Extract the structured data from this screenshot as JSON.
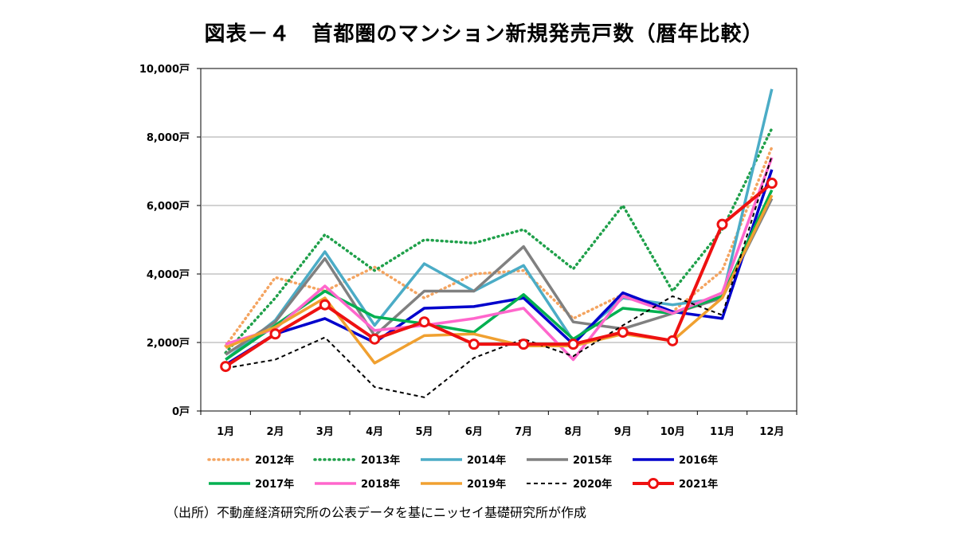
{
  "chart_data": {
    "type": "line",
    "title": "図表－４　首都圏のマンション新規発売戸数（暦年比較）",
    "xlabel": "",
    "ylabel": "",
    "categories": [
      "1月",
      "2月",
      "3月",
      "4月",
      "5月",
      "6月",
      "7月",
      "8月",
      "9月",
      "10月",
      "11月",
      "12月"
    ],
    "ylim": [
      0,
      10000
    ],
    "yticks": [
      0,
      2000,
      4000,
      6000,
      8000,
      10000
    ],
    "ytick_labels": [
      "0戸",
      "2,000戸",
      "4,000戸",
      "6,000戸",
      "8,000戸",
      "10,000戸"
    ],
    "grid": true,
    "legend_position": "bottom",
    "series": [
      {
        "name": "2012年",
        "color": "#f4a460",
        "style": "dotted",
        "values": [
          1900,
          3900,
          3500,
          4200,
          3300,
          4000,
          4100,
          2700,
          3400,
          2900,
          4100,
          7700
        ]
      },
      {
        "name": "2013年",
        "color": "#1fa04a",
        "style": "dotted",
        "values": [
          1700,
          3300,
          5150,
          4100,
          5000,
          4900,
          5300,
          4150,
          6000,
          3500,
          5300,
          8250
        ]
      },
      {
        "name": "2014年",
        "color": "#4bacc6",
        "style": "solid",
        "values": [
          1500,
          2650,
          4650,
          2500,
          4300,
          3500,
          4250,
          2050,
          3300,
          3100,
          3300,
          9400
        ]
      },
      {
        "name": "2015年",
        "color": "#808080",
        "style": "solid",
        "values": [
          1650,
          2600,
          4450,
          2200,
          3500,
          3500,
          4800,
          2600,
          2400,
          2850,
          3300,
          6200
        ]
      },
      {
        "name": "2016年",
        "color": "#0000cc",
        "style": "solid",
        "values": [
          1350,
          2250,
          2700,
          2000,
          3000,
          3050,
          3300,
          1950,
          3450,
          2900,
          2700,
          7050
        ]
      },
      {
        "name": "2017年",
        "color": "#00b050",
        "style": "solid",
        "values": [
          1500,
          2500,
          3500,
          2750,
          2550,
          2300,
          3400,
          2100,
          3000,
          2850,
          3350,
          6450
        ]
      },
      {
        "name": "2018年",
        "color": "#ff66cc",
        "style": "solid",
        "values": [
          1950,
          2400,
          3650,
          2350,
          2500,
          2700,
          3000,
          1500,
          3350,
          2850,
          3450,
          7400
        ]
      },
      {
        "name": "2019年",
        "color": "#f0a030",
        "style": "solid",
        "values": [
          1850,
          2450,
          3300,
          1400,
          2200,
          2250,
          1900,
          1900,
          2250,
          2050,
          3300,
          6300
        ]
      },
      {
        "name": "2020年",
        "color": "#000000",
        "style": "dashed",
        "values": [
          1250,
          1500,
          2150,
          700,
          400,
          1550,
          2100,
          1600,
          2500,
          3350,
          2800,
          7450
        ]
      },
      {
        "name": "2021年",
        "color": "#ee1111",
        "style": "markers",
        "values": [
          1300,
          2250,
          3100,
          2100,
          2600,
          1950,
          1950,
          1950,
          2300,
          2050,
          5450,
          6650
        ]
      }
    ]
  },
  "source_text": "（出所）不動産経済研究所の公表データを基にニッセイ基礎研究所が作成"
}
